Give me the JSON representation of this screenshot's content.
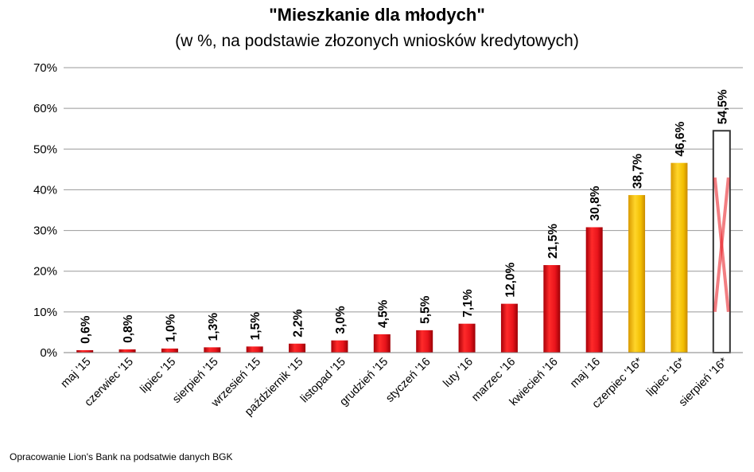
{
  "chart_data": {
    "type": "bar",
    "title": "\"Mieszkanie dla młodych\"",
    "subtitle": "(w %, na podstawie złozonych wniosków kredytowych)",
    "xlabel": "",
    "ylabel": "",
    "ylim": [
      0,
      70
    ],
    "yticks": [
      "0%",
      "10%",
      "20%",
      "30%",
      "40%",
      "50%",
      "60%",
      "70%"
    ],
    "grid": true,
    "categories": [
      "maj '15",
      "czerwiec '15",
      "lipiec '15",
      "sierpień '15",
      "wrzesień '15",
      "październik '15",
      "listopad '15",
      "grudzień '15",
      "styczeń '16",
      "luty '16",
      "marzec '16",
      "kwiecień '16",
      "maj '16",
      "czerpiec '16*",
      "lipiec '16*",
      "sierpień '16*"
    ],
    "values": [
      0.6,
      0.8,
      1.0,
      1.3,
      1.5,
      2.2,
      3.0,
      4.5,
      5.5,
      7.1,
      12.0,
      21.5,
      30.8,
      38.7,
      46.6,
      54.5
    ],
    "value_labels": [
      "0,6%",
      "0,8%",
      "1,0%",
      "1,3%",
      "1,5%",
      "2,2%",
      "3,0%",
      "4,5%",
      "5,5%",
      "7,1%",
      "12,0%",
      "21,5%",
      "30,8%",
      "38,7%",
      "46,6%",
      "54,5%"
    ],
    "bar_styles": [
      "actual",
      "actual",
      "actual",
      "actual",
      "actual",
      "actual",
      "actual",
      "actual",
      "actual",
      "actual",
      "actual",
      "actual",
      "actual",
      "forecast",
      "forecast",
      "crossed"
    ],
    "colors": {
      "actual": "#e8141b",
      "forecast": "#f2be00",
      "crossed_outline": "#333333",
      "cross": "#e8141b",
      "grid": "#999999"
    }
  },
  "footnote": "Opracowanie Lion's Bank na podsatwie danych BGK"
}
